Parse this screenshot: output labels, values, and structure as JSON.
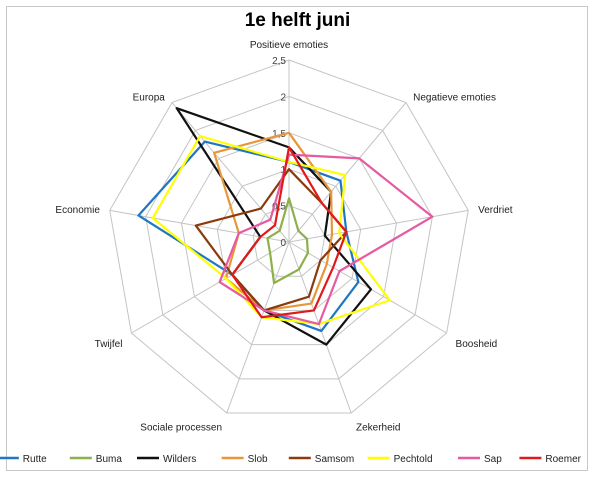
{
  "chart_data": {
    "type": "radar",
    "title": "1e helft juni",
    "axes": [
      "Positieve emoties",
      "Negatieve emoties",
      "Verdriet",
      "Boosheid",
      "Zekerheid",
      "Sociale processen",
      "Twijfel",
      "Economie",
      "Europa"
    ],
    "r_ticks": [
      "0",
      "0,5",
      "1",
      "1,5",
      "2",
      "2,5"
    ],
    "rlim": [
      0,
      2.5
    ],
    "grid": true,
    "legend_position": "bottom",
    "series": [
      {
        "name": "Rutte",
        "color": "#1f77c4",
        "values": [
          1.1,
          1.1,
          0.8,
          1.1,
          1.3,
          1.0,
          0.9,
          2.1,
          1.8
        ]
      },
      {
        "name": "Buma",
        "color": "#8db04a",
        "values": [
          0.6,
          0.2,
          0.25,
          0.3,
          0.4,
          0.6,
          0.3,
          0.3,
          0.2
        ]
      },
      {
        "name": "Wilders",
        "color": "#111111",
        "values": [
          1.3,
          0.9,
          0.5,
          1.3,
          1.5,
          1.0,
          0.9,
          0.4,
          2.4
        ]
      },
      {
        "name": "Slob",
        "color": "#e8963a",
        "values": [
          1.5,
          0.9,
          0.6,
          0.6,
          0.9,
          1.0,
          1.0,
          0.7,
          1.6
        ]
      },
      {
        "name": "Samsom",
        "color": "#8b3a0e",
        "values": [
          1.0,
          0.7,
          0.8,
          0.5,
          0.8,
          1.0,
          0.9,
          1.3,
          0.6
        ]
      },
      {
        "name": "Pechtold",
        "color": "#ffff00",
        "values": [
          1.1,
          1.2,
          0.7,
          1.6,
          1.2,
          1.1,
          1.0,
          1.9,
          1.9
        ]
      },
      {
        "name": "Sap",
        "color": "#e55aa0",
        "values": [
          1.2,
          1.5,
          2.0,
          0.8,
          1.2,
          1.0,
          1.1,
          0.7,
          0.4
        ]
      },
      {
        "name": "Roemer",
        "color": "#e01a1a",
        "values": [
          1.3,
          0.7,
          0.8,
          0.7,
          1.0,
          1.1,
          0.9,
          0.4,
          0.3
        ]
      }
    ]
  }
}
